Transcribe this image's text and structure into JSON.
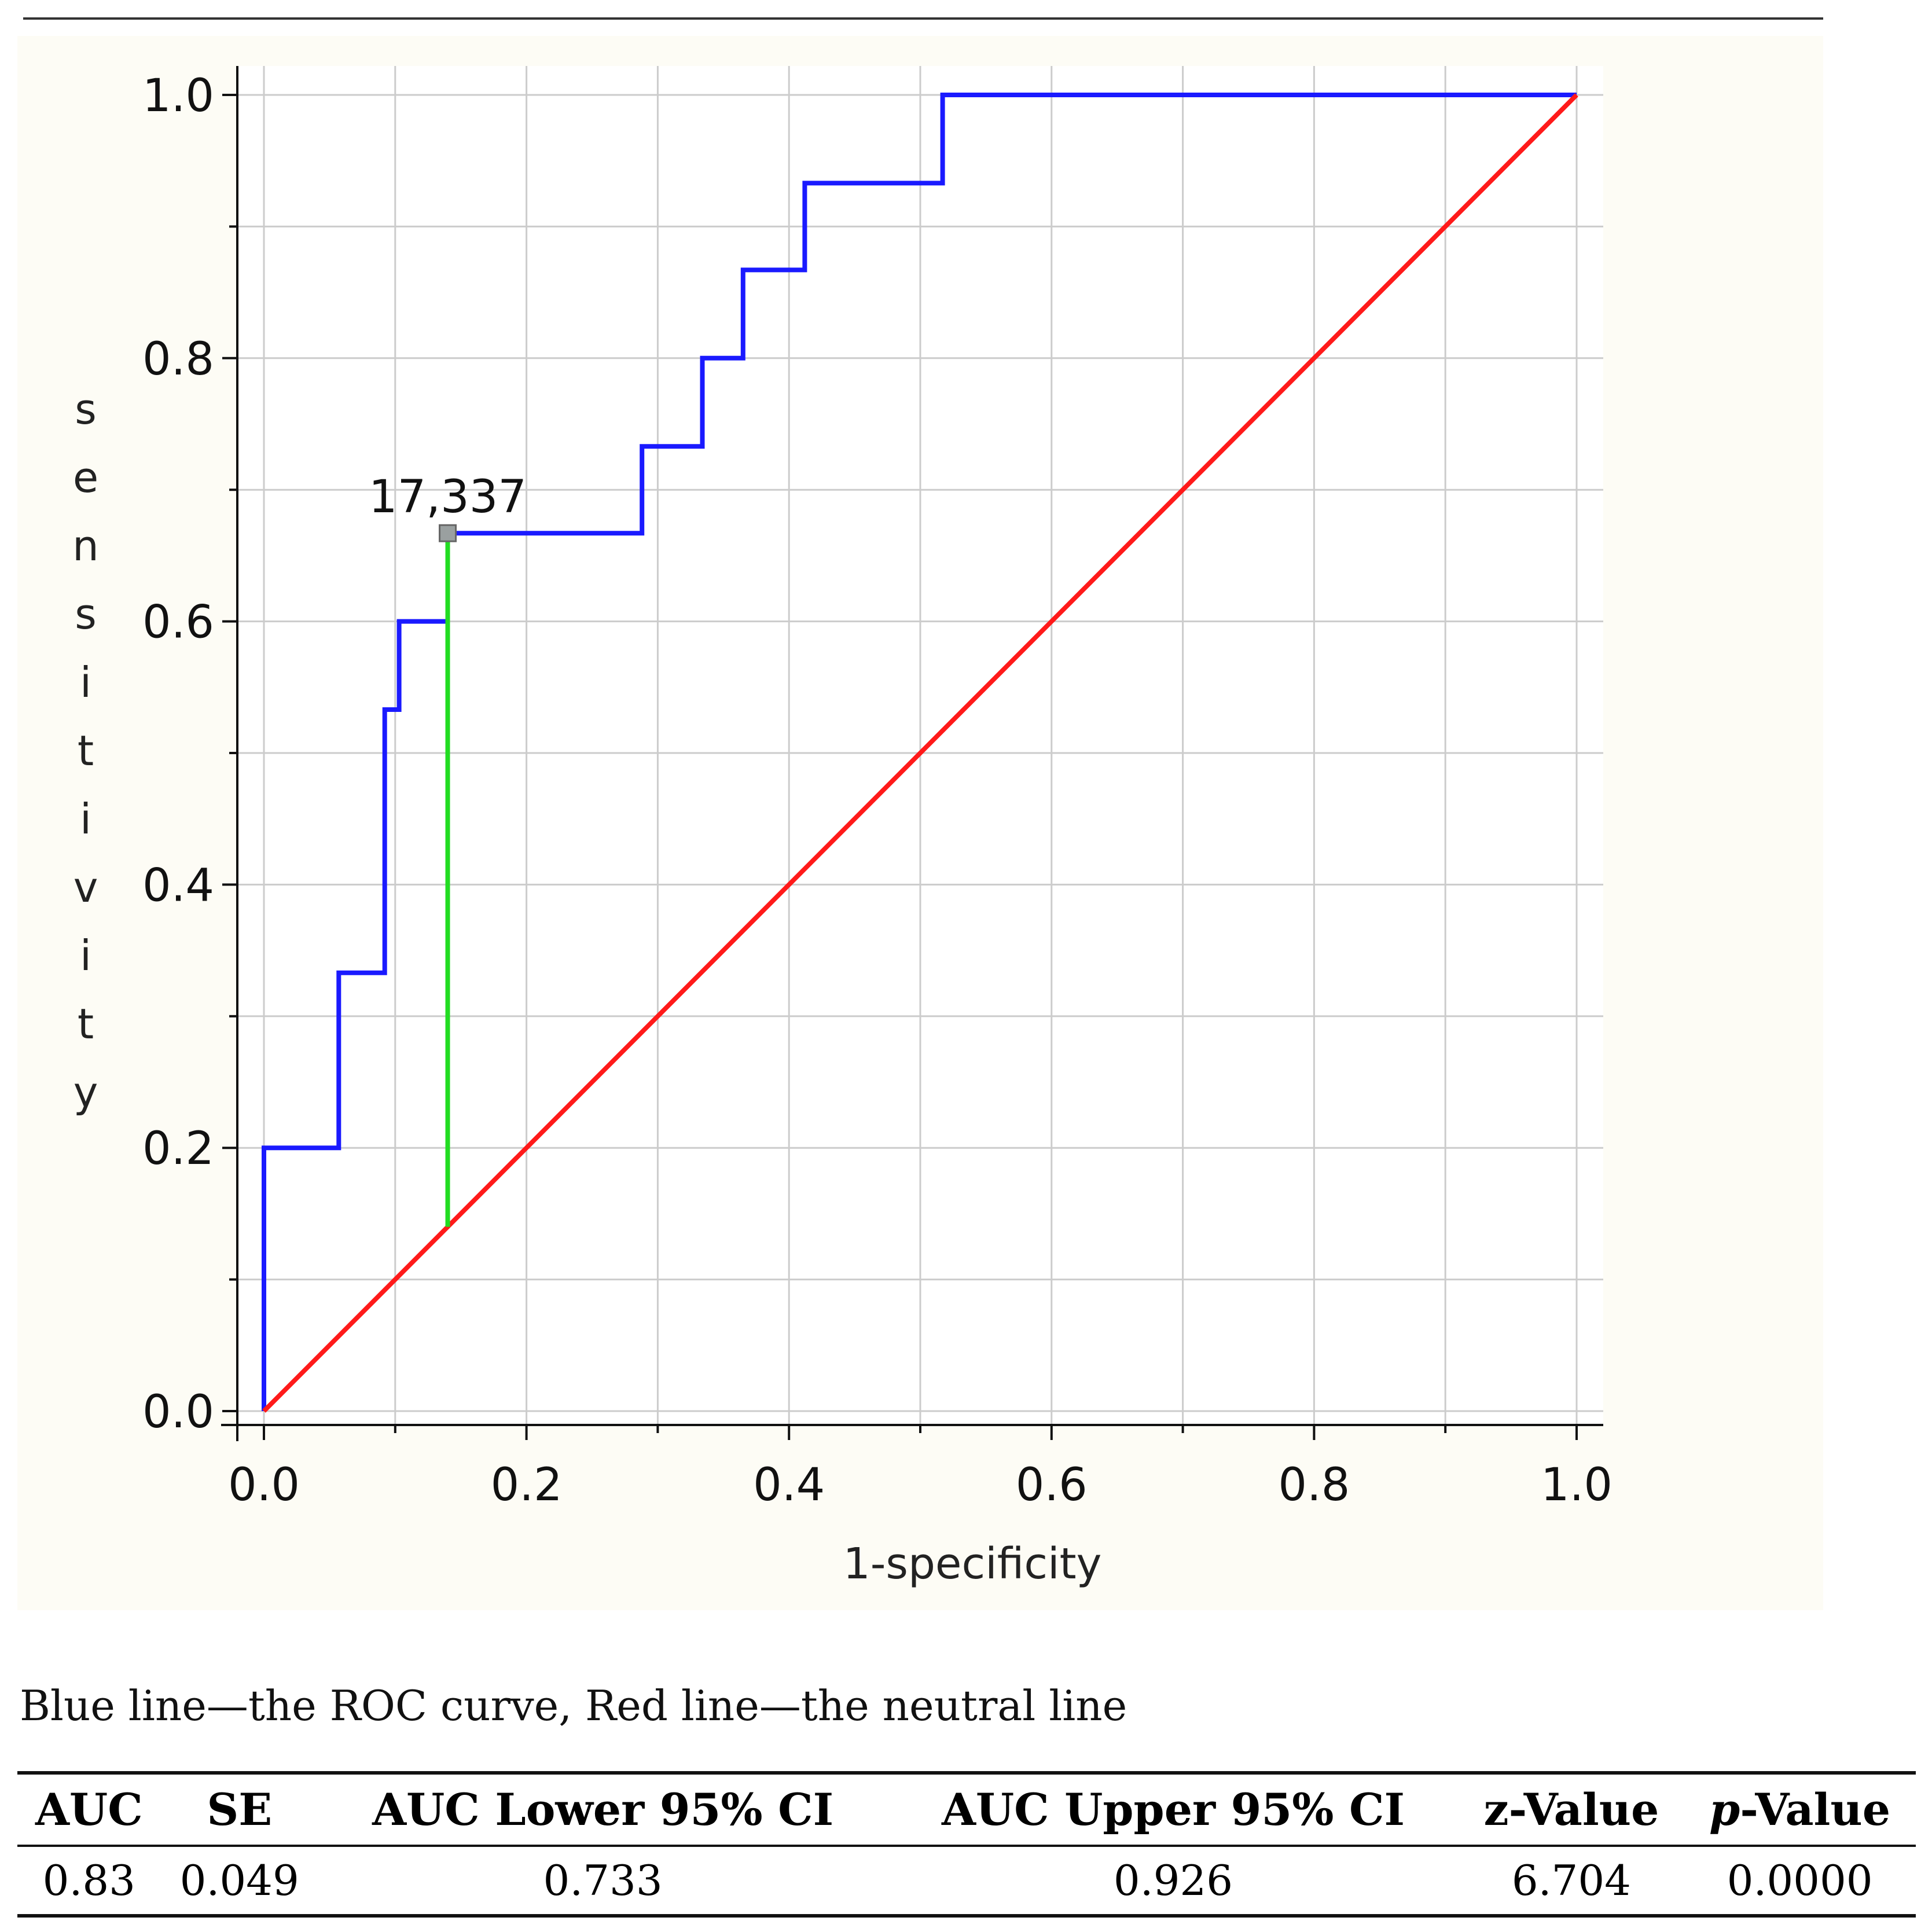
{
  "chart_data": {
    "type": "line",
    "xlabel": "1-specificity",
    "ylabel": "sensitivity",
    "xlim": [
      0,
      1
    ],
    "ylim": [
      0,
      1
    ],
    "x_ticks": [
      "0.0",
      "0.2",
      "0.4",
      "0.6",
      "0.8",
      "1.0"
    ],
    "y_ticks": [
      "0.0",
      "0.2",
      "0.4",
      "0.6",
      "0.8",
      "1.0"
    ],
    "grid": true,
    "series": [
      {
        "color": "#1a1aff",
        "x": [
          0,
          0,
          0.057,
          0.057,
          0.092,
          0.092,
          0.103,
          0.103,
          0.14,
          0.14,
          0.288,
          0.288,
          0.334,
          0.334,
          0.365,
          0.365,
          0.412,
          0.412,
          0.517,
          0.517,
          1.0
        ],
        "y": [
          0,
          0.2,
          0.2,
          0.333,
          0.333,
          0.533,
          0.533,
          0.6,
          0.6,
          0.667,
          0.667,
          0.733,
          0.733,
          0.8,
          0.8,
          0.867,
          0.867,
          0.933,
          0.933,
          1.0,
          1.0
        ]
      },
      {
        "color": "#ff1a1a",
        "x": [
          0,
          1
        ],
        "y": [
          0,
          1
        ]
      },
      {
        "color": "#22dd22",
        "x": [
          0.14,
          0.14
        ],
        "y": [
          0.14,
          0.667
        ]
      }
    ],
    "annotations": [
      {
        "text": "17,337",
        "x": 0.14,
        "y": 0.667
      }
    ]
  },
  "caption": "Blue line—the ROC curve, Red line—the neutral line",
  "table": {
    "headers": [
      "AUC",
      "SE",
      "AUC Lower 95% CI",
      "AUC Upper 95% CI",
      "z-Value",
      "-Value"
    ],
    "header_p_prefix": "p",
    "row": [
      "0.83",
      "0.049",
      "0.733",
      "0.926",
      "6.704",
      "0.0000"
    ]
  }
}
